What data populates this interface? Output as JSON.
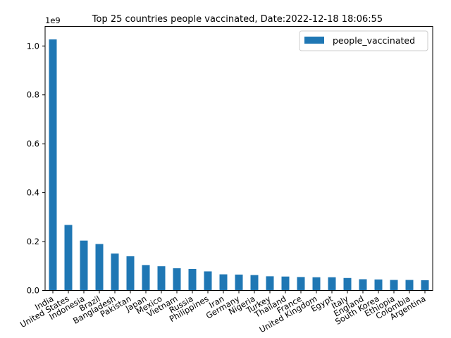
{
  "chart_data": {
    "type": "bar",
    "title": "Top 25 countries people vaccinated, Date:2022-12-18 18:06:55",
    "xlabel": "",
    "ylabel": "",
    "y_offset_label": "1e9",
    "ylim": [
      0,
      1.08
    ],
    "y_ticks": [
      "0.0",
      "0.2",
      "0.4",
      "0.6",
      "0.8",
      "1.0"
    ],
    "categories": [
      "India",
      "United States",
      "Indonesia",
      "Brazil",
      "Bangladesh",
      "Pakistan",
      "Japan",
      "Mexico",
      "Vietnam",
      "Russia",
      "Philippines",
      "Iran",
      "Germany",
      "Nigeria",
      "Turkey",
      "Thailand",
      "France",
      "United Kingdom",
      "Egypt",
      "Italy",
      "England",
      "South Korea",
      "Ethiopia",
      "Colombia",
      "Argentina"
    ],
    "series": [
      {
        "name": "people_vaccinated",
        "color": "#1f77b4",
        "values": [
          1.027,
          0.268,
          0.204,
          0.19,
          0.151,
          0.14,
          0.104,
          0.099,
          0.091,
          0.088,
          0.078,
          0.066,
          0.065,
          0.063,
          0.058,
          0.057,
          0.055,
          0.054,
          0.054,
          0.051,
          0.046,
          0.045,
          0.043,
          0.043,
          0.042
        ]
      }
    ],
    "legend": "top-right",
    "grid": false
  }
}
